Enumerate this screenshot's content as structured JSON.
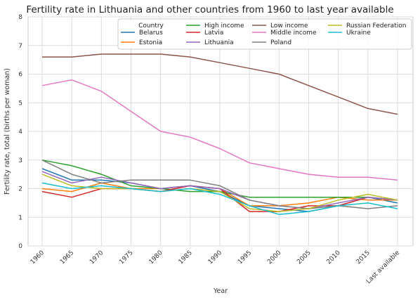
{
  "chart_data": {
    "type": "line",
    "title": "Fertility rate in Lithuania and other countries from 1960 to last year available",
    "xlabel": "Year",
    "ylabel": "Fertility rate, total (births per woman)",
    "ylim": [
      0,
      8
    ],
    "yticks": [
      "0",
      "1",
      "2",
      "3",
      "4",
      "5",
      "6",
      "7",
      "8"
    ],
    "categories": [
      "1960",
      "1965",
      "1970",
      "1975",
      "1980",
      "1985",
      "1990",
      "1995",
      "2000",
      "2005",
      "2010",
      "2015",
      "Last available"
    ],
    "grid": true,
    "legend": {
      "title": "Country",
      "placement": "top-right",
      "columns": 4
    },
    "series": [
      {
        "name": "Belarus",
        "color": "#1f77b4",
        "values": [
          2.7,
          2.3,
          2.3,
          2.2,
          2.0,
          2.1,
          1.9,
          1.4,
          1.3,
          1.2,
          1.4,
          1.7,
          1.5
        ]
      },
      {
        "name": "Estonia",
        "color": "#ff7f0e",
        "values": [
          2.0,
          1.9,
          2.2,
          2.0,
          2.0,
          2.1,
          2.0,
          1.4,
          1.4,
          1.5,
          1.7,
          1.6,
          1.6
        ]
      },
      {
        "name": "High income",
        "color": "#2ca02c",
        "values": [
          3.0,
          2.8,
          2.5,
          2.1,
          2.0,
          1.9,
          1.9,
          1.7,
          1.7,
          1.7,
          1.7,
          1.7,
          1.6
        ]
      },
      {
        "name": "Latvia",
        "color": "#d62728",
        "values": [
          1.9,
          1.7,
          2.0,
          2.0,
          1.9,
          2.1,
          2.0,
          1.2,
          1.2,
          1.4,
          1.4,
          1.7,
          1.6
        ]
      },
      {
        "name": "Lithuania",
        "color": "#9467bd",
        "values": [
          2.6,
          2.2,
          2.4,
          2.2,
          2.0,
          2.1,
          2.0,
          1.6,
          1.4,
          1.3,
          1.5,
          1.7,
          1.6
        ]
      },
      {
        "name": "Low income",
        "color": "#8c564b",
        "values": [
          6.6,
          6.6,
          6.7,
          6.7,
          6.7,
          6.6,
          6.4,
          6.2,
          6.0,
          5.6,
          5.2,
          4.8,
          4.6
        ]
      },
      {
        "name": "Middle income",
        "color": "#e377c2",
        "values": [
          5.6,
          5.8,
          5.4,
          4.7,
          4.0,
          3.8,
          3.4,
          2.9,
          2.7,
          2.5,
          2.4,
          2.4,
          2.3
        ]
      },
      {
        "name": "Poland",
        "color": "#7f7f7f",
        "values": [
          3.0,
          2.5,
          2.2,
          2.3,
          2.3,
          2.3,
          2.1,
          1.6,
          1.4,
          1.3,
          1.4,
          1.3,
          1.4
        ]
      },
      {
        "name": "Russian Federation",
        "color": "#bcbd22",
        "values": [
          2.5,
          2.1,
          2.0,
          2.0,
          1.9,
          2.0,
          1.9,
          1.3,
          1.2,
          1.3,
          1.6,
          1.8,
          1.6
        ]
      },
      {
        "name": "Ukraine",
        "color": "#17becf",
        "values": [
          2.2,
          2.0,
          2.1,
          2.0,
          1.9,
          2.0,
          1.8,
          1.4,
          1.1,
          1.2,
          1.4,
          1.5,
          1.3
        ]
      }
    ]
  }
}
